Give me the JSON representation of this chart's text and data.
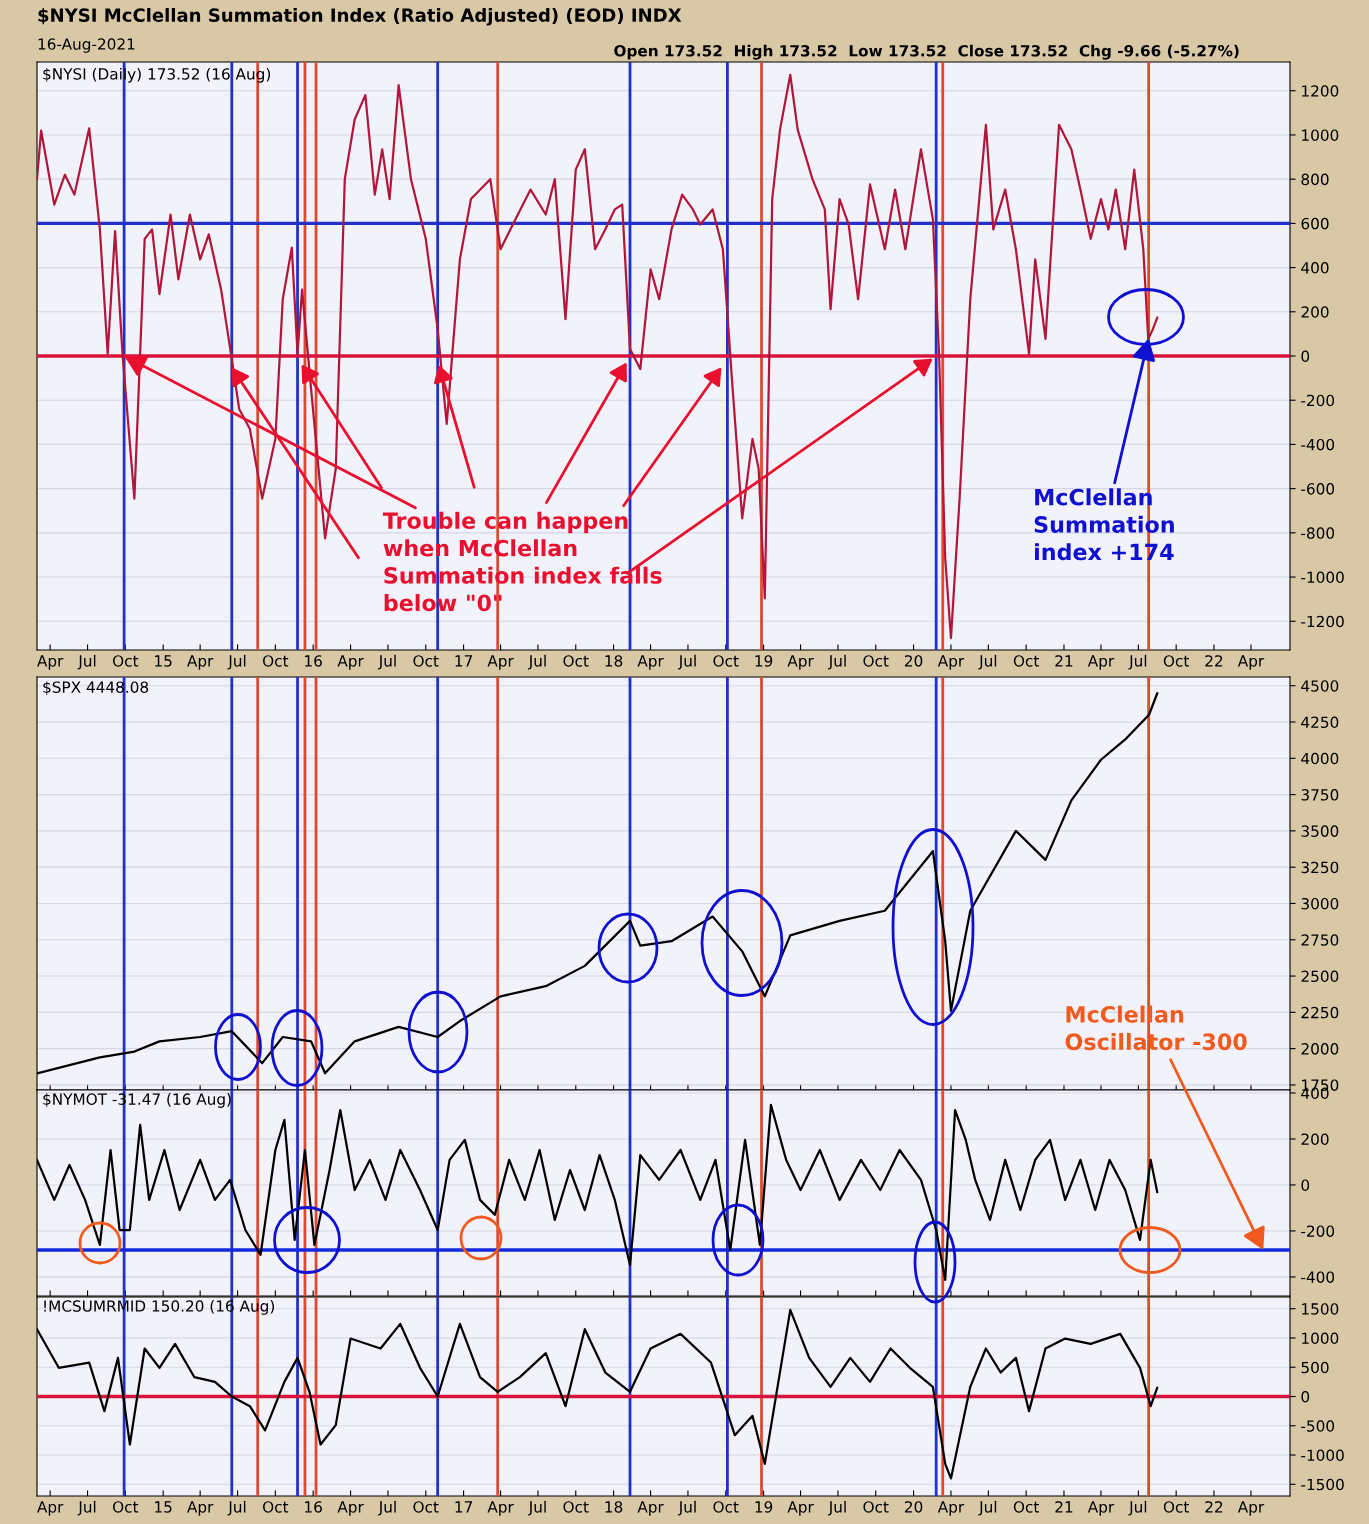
{
  "chart_data": [
    {
      "type": "line",
      "title": "$NYSI McClellan Summation Index (Ratio Adjusted) (EOD) INDX",
      "subtitle": "16-Aug-2021",
      "annotations": [
        "$NYSI (Daily) 173.52 (16 Aug)",
        "Open 173.52  High 173.52  Low 173.52  Close 173.52  Chg -9.66 (-5.27%)",
        {
          "text": "Trouble can happen\nwhen McClellan\nSummation index falls\nbelow \"0\"",
          "x": "2014-09-28",
          "y": 0
        },
        {
          "text": "McClellan\nSummation\nindex +174",
          "x": "2021-07-26",
          "y": 80
        }
      ],
      "x": [
        "2014-02-28",
        "2014-03-10",
        "2014-04-11",
        "2014-05-07",
        "2014-05-30",
        "2014-07-05",
        "2014-07-31",
        "2014-08-19",
        "2014-09-06",
        "2014-09-24",
        "2014-10-23",
        "2014-11-17",
        "2014-12-05",
        "2014-12-23",
        "2015-01-19",
        "2015-02-07",
        "2015-03-07",
        "2015-04-01",
        "2015-04-22",
        "2015-05-22",
        "2015-06-17",
        "2015-07-05",
        "2015-07-31",
        "2015-08-30",
        "2015-10-01",
        "2015-10-19",
        "2015-11-10",
        "2015-11-24",
        "2015-12-05",
        "2015-12-27",
        "2016-01-30",
        "2016-02-25",
        "2016-03-18",
        "2016-04-11",
        "2016-05-07",
        "2016-05-30",
        "2016-06-17",
        "2016-07-05",
        "2016-07-27",
        "2016-08-26",
        "2016-10-01",
        "2016-10-30",
        "2016-11-21",
        "2016-12-23",
        "2017-01-19",
        "2017-03-07",
        "2017-04-01",
        "2017-05-07",
        "2017-06-13",
        "2017-07-20",
        "2017-08-11",
        "2017-09-06",
        "2017-10-01",
        "2017-10-23",
        "2017-11-17",
        "2017-12-12",
        "2018-01-04",
        "2018-01-22",
        "2018-02-10",
        "2018-03-07",
        "2018-04-01",
        "2018-04-22",
        "2018-05-22",
        "2018-06-17",
        "2018-07-13",
        "2018-07-31",
        "2018-08-30",
        "2018-09-24",
        "2018-10-16",
        "2018-11-10",
        "2018-12-05",
        "2018-12-20",
        "2019-01-04",
        "2019-01-22",
        "2019-02-10",
        "2019-03-07",
        "2019-03-25",
        "2019-04-30",
        "2019-05-30",
        "2019-06-13",
        "2019-07-05",
        "2019-07-27",
        "2019-08-19",
        "2019-09-17",
        "2019-10-23",
        "2019-11-17",
        "2019-12-12",
        "2020-01-19",
        "2020-02-17",
        "2020-03-03",
        "2020-03-18",
        "2020-04-01",
        "2020-04-22",
        "2020-05-18",
        "2020-06-25",
        "2020-07-13",
        "2020-08-11",
        "2020-09-06",
        "2020-10-08",
        "2020-10-23",
        "2020-11-17",
        "2020-12-20",
        "2021-01-19",
        "2021-02-10",
        "2021-03-07",
        "2021-04-01",
        "2021-04-19",
        "2021-05-07",
        "2021-05-30",
        "2021-06-21",
        "2021-07-13",
        "2021-07-25",
        "2021-08-05",
        "2021-08-16"
      ],
      "values": [
        800,
        1020,
        685,
        820,
        730,
        1030,
        573,
        10,
        565,
        10,
        -645,
        530,
        573,
        280,
        640,
        347,
        640,
        437,
        550,
        300,
        -14,
        -240,
        -330,
        -645,
        -375,
        257,
        490,
        10,
        300,
        -150,
        -825,
        -510,
        800,
        1070,
        1180,
        730,
        935,
        710,
        1225,
        800,
        530,
        120,
        -307,
        437,
        710,
        800,
        483,
        618,
        753,
        640,
        800,
        167,
        843,
        935,
        483,
        573,
        663,
        685,
        32,
        -59,
        392,
        257,
        573,
        730,
        663,
        595,
        663,
        483,
        -104,
        -735,
        -375,
        -510,
        -1096,
        710,
        1024,
        1272,
        1024,
        800,
        663,
        212,
        710,
        595,
        257,
        776,
        483,
        753,
        483,
        935,
        618,
        10,
        -915,
        -1276,
        -645,
        257,
        1046,
        573,
        753,
        483,
        10,
        437,
        77,
        1046,
        935,
        753,
        530,
        710,
        573,
        753,
        483,
        843,
        483,
        77,
        120,
        173.52
      ],
      "color": "#b0173a",
      "xlim": [
        "2014-02-28",
        "2022-07-05"
      ],
      "ylim": [
        -1330,
        1330
      ],
      "xticks": [
        {
          "value": "2014-04-01",
          "label": "Apr"
        },
        {
          "value": "2014-07-01",
          "label": "Jul"
        },
        {
          "value": "2014-10-01",
          "label": "Oct"
        },
        {
          "value": "2015-01-01",
          "label": "15"
        },
        {
          "value": "2015-04-01",
          "label": "Apr"
        },
        {
          "value": "2015-07-01",
          "label": "Jul"
        },
        {
          "value": "2015-10-01",
          "label": "Oct"
        },
        {
          "value": "2016-01-01",
          "label": "16"
        },
        {
          "value": "2016-04-01",
          "label": "Apr"
        },
        {
          "value": "2016-07-01",
          "label": "Jul"
        },
        {
          "value": "2016-10-01",
          "label": "Oct"
        },
        {
          "value": "2017-01-01",
          "label": "17"
        },
        {
          "value": "2017-04-01",
          "label": "Apr"
        },
        {
          "value": "2017-07-01",
          "label": "Jul"
        },
        {
          "value": "2017-10-01",
          "label": "Oct"
        },
        {
          "value": "2018-01-01",
          "label": "18"
        },
        {
          "value": "2018-04-01",
          "label": "Apr"
        },
        {
          "value": "2018-07-01",
          "label": "Jul"
        },
        {
          "value": "2018-10-01",
          "label": "Oct"
        },
        {
          "value": "2019-01-01",
          "label": "19"
        },
        {
          "value": "2019-04-01",
          "label": "Apr"
        },
        {
          "value": "2019-07-01",
          "label": "Jul"
        },
        {
          "value": "2019-10-01",
          "label": "Oct"
        },
        {
          "value": "2020-01-01",
          "label": "20"
        },
        {
          "value": "2020-04-01",
          "label": "Apr"
        },
        {
          "value": "2020-07-01",
          "label": "Jul"
        },
        {
          "value": "2020-10-01",
          "label": "Oct"
        },
        {
          "value": "2021-01-01",
          "label": "21"
        },
        {
          "value": "2021-04-01",
          "label": "Apr"
        },
        {
          "value": "2021-07-01",
          "label": "Jul"
        },
        {
          "value": "2021-10-01",
          "label": "Oct"
        },
        {
          "value": "2022-01-01",
          "label": "22"
        },
        {
          "value": "2022-04-01",
          "label": "Apr"
        }
      ],
      "yticks": [
        -1200,
        -1000,
        -800,
        -600,
        -400,
        -200,
        0,
        200,
        400,
        600,
        800,
        1000,
        1200
      ],
      "grid": "y",
      "ref_lines": [
        {
          "axis": "y",
          "value": 600,
          "color": "#2030c8"
        },
        {
          "axis": "y",
          "value": 0,
          "color": "#d8143c"
        },
        {
          "axis": "x",
          "value": "2014-09-28",
          "color": "#2030c8"
        },
        {
          "axis": "x",
          "value": "2015-06-17",
          "color": "#2030c8"
        },
        {
          "axis": "x",
          "value": "2015-11-24",
          "color": "#2030c8"
        },
        {
          "axis": "x",
          "value": "2016-10-30",
          "color": "#2030c8"
        },
        {
          "axis": "x",
          "value": "2018-02-10",
          "color": "#2030c8"
        },
        {
          "axis": "x",
          "value": "2018-10-05",
          "color": "#2030c8"
        },
        {
          "axis": "x",
          "value": "2020-02-25",
          "color": "#2030c8"
        },
        {
          "axis": "x",
          "value": "2015-08-19",
          "color": "#e04830"
        },
        {
          "axis": "x",
          "value": "2015-12-12",
          "color": "#e04830"
        },
        {
          "axis": "x",
          "value": "2016-01-08",
          "color": "#e04830"
        },
        {
          "axis": "x",
          "value": "2017-03-25",
          "color": "#e04830"
        },
        {
          "axis": "x",
          "value": "2018-12-27",
          "color": "#e04830"
        },
        {
          "axis": "x",
          "value": "2020-03-12",
          "color": "#e04830"
        },
        {
          "axis": "x",
          "value": "2021-07-26",
          "color": "#e04830"
        }
      ]
    },
    {
      "type": "line",
      "annotations": [
        "$SPX 4448.08"
      ],
      "x": [
        "2014-02-28",
        "2014-07-31",
        "2014-10-23",
        "2014-12-23",
        "2015-04-01",
        "2015-06-17",
        "2015-08-30",
        "2015-10-19",
        "2015-12-27",
        "2016-01-30",
        "2016-04-11",
        "2016-07-27",
        "2016-10-30",
        "2016-12-23",
        "2017-04-01",
        "2017-07-20",
        "2017-10-23",
        "2018-02-10",
        "2018-03-07",
        "2018-05-22",
        "2018-08-30",
        "2018-11-10",
        "2019-01-04",
        "2019-03-07",
        "2019-07-05",
        "2019-10-23",
        "2020-02-17",
        "2020-03-18",
        "2020-04-01",
        "2020-05-18",
        "2020-09-06",
        "2020-11-17",
        "2021-01-19",
        "2021-04-01",
        "2021-05-30",
        "2021-07-27",
        "2021-08-16"
      ],
      "values": [
        1830,
        1940,
        1980,
        2050,
        2080,
        2120,
        1900,
        2080,
        2050,
        1830,
        2050,
        2150,
        2080,
        2190,
        2360,
        2430,
        2570,
        2880,
        2710,
        2740,
        2910,
        2670,
        2360,
        2780,
        2880,
        2950,
        3360,
        2740,
        2260,
        2950,
        3500,
        3300,
        3710,
        3990,
        4130,
        4300,
        4448.08
      ],
      "color": "#000000",
      "xlim": [
        "2014-02-28",
        "2022-07-05"
      ],
      "ylim": [
        1715,
        4560
      ],
      "tick_labels": "y",
      "xticks": [
        {
          "value": "2014-04-01",
          "label": null
        },
        {
          "value": "2014-07-01",
          "label": null
        },
        {
          "value": "2014-10-01",
          "label": null
        },
        {
          "value": "2015-01-01",
          "label": null
        },
        {
          "value": "2015-04-01",
          "label": null
        },
        {
          "value": "2015-07-01",
          "label": null
        },
        {
          "value": "2015-10-01",
          "label": null
        },
        {
          "value": "2016-01-01",
          "label": null
        },
        {
          "value": "2016-04-01",
          "label": null
        },
        {
          "value": "2016-07-01",
          "label": null
        },
        {
          "value": "2016-10-01",
          "label": null
        },
        {
          "value": "2017-01-01",
          "label": null
        },
        {
          "value": "2017-04-01",
          "label": null
        },
        {
          "value": "2017-07-01",
          "label": null
        },
        {
          "value": "2017-10-01",
          "label": null
        },
        {
          "value": "2018-01-01",
          "label": null
        },
        {
          "value": "2018-04-01",
          "label": null
        },
        {
          "value": "2018-07-01",
          "label": null
        },
        {
          "value": "2018-10-01",
          "label": null
        },
        {
          "value": "2019-01-01",
          "label": null
        },
        {
          "value": "2019-04-01",
          "label": null
        },
        {
          "value": "2019-07-01",
          "label": null
        },
        {
          "value": "2019-10-01",
          "label": null
        },
        {
          "value": "2020-01-01",
          "label": null
        },
        {
          "value": "2020-04-01",
          "label": null
        },
        {
          "value": "2020-07-01",
          "label": null
        },
        {
          "value": "2020-10-01",
          "label": null
        },
        {
          "value": "2021-01-01",
          "label": null
        },
        {
          "value": "2021-04-01",
          "label": null
        },
        {
          "value": "2021-07-01",
          "label": null
        },
        {
          "value": "2021-10-01",
          "label": null
        },
        {
          "value": "2022-01-01",
          "label": null
        },
        {
          "value": "2022-04-01",
          "label": null
        }
      ],
      "yticks": [
        1750,
        2000,
        2250,
        2500,
        2750,
        3000,
        3250,
        3500,
        3750,
        4000,
        4250,
        4500
      ],
      "grid": "y",
      "ref_lines": [
        {
          "axis": "x",
          "value": "2014-09-28",
          "color": "#2030c8"
        },
        {
          "axis": "x",
          "value": "2015-06-17",
          "color": "#2030c8"
        },
        {
          "axis": "x",
          "value": "2015-11-24",
          "color": "#2030c8"
        },
        {
          "axis": "x",
          "value": "2016-10-30",
          "color": "#2030c8"
        },
        {
          "axis": "x",
          "value": "2018-02-10",
          "color": "#2030c8"
        },
        {
          "axis": "x",
          "value": "2018-10-05",
          "color": "#2030c8"
        },
        {
          "axis": "x",
          "value": "2020-02-25",
          "color": "#2030c8"
        },
        {
          "axis": "x",
          "value": "2015-08-19",
          "color": "#e04830"
        },
        {
          "axis": "x",
          "value": "2015-12-12",
          "color": "#e04830"
        },
        {
          "axis": "x",
          "value": "2016-01-08",
          "color": "#e04830"
        },
        {
          "axis": "x",
          "value": "2017-03-25",
          "color": "#e04830"
        },
        {
          "axis": "x",
          "value": "2018-12-27",
          "color": "#e04830"
        },
        {
          "axis": "x",
          "value": "2020-03-12",
          "color": "#e04830"
        },
        {
          "axis": "x",
          "value": "2021-07-26",
          "color": "#e04830"
        }
      ]
    },
    {
      "type": "line",
      "annotations": [
        "$NYMOT -31.47 (16 Aug)",
        {
          "text": "McClellan\nOscillator -300",
          "x": "2022-05-01",
          "y": -283
        }
      ],
      "x": [
        "2014-02-28",
        "2014-04-11",
        "2014-05-18",
        "2014-06-25",
        "2014-07-31",
        "2014-08-26",
        "2014-09-17",
        "2014-10-12",
        "2014-11-06",
        "2014-11-28",
        "2015-01-04",
        "2015-02-10",
        "2015-04-01",
        "2015-05-07",
        "2015-06-13",
        "2015-07-20",
        "2015-08-26",
        "2015-10-01",
        "2015-10-23",
        "2015-11-17",
        "2015-12-12",
        "2016-01-04",
        "2016-02-10",
        "2016-03-07",
        "2016-04-11",
        "2016-05-18",
        "2016-06-25",
        "2016-07-31",
        "2016-09-17",
        "2016-10-30",
        "2016-11-28",
        "2017-01-04",
        "2017-02-10",
        "2017-03-18",
        "2017-04-22",
        "2017-05-30",
        "2017-07-05",
        "2017-08-11",
        "2017-09-17",
        "2017-10-23",
        "2017-11-28",
        "2018-01-04",
        "2018-02-10",
        "2018-03-07",
        "2018-04-22",
        "2018-06-13",
        "2018-07-31",
        "2018-09-06",
        "2018-10-12",
        "2018-11-17",
        "2018-12-23",
        "2019-01-19",
        "2019-02-25",
        "2019-04-01",
        "2019-05-18",
        "2019-07-05",
        "2019-08-26",
        "2019-10-12",
        "2019-11-28",
        "2020-01-19",
        "2020-02-25",
        "2020-03-18",
        "2020-04-11",
        "2020-05-07",
        "2020-05-30",
        "2020-07-05",
        "2020-08-11",
        "2020-09-17",
        "2020-10-23",
        "2020-11-28",
        "2021-01-04",
        "2021-02-10",
        "2021-03-18",
        "2021-04-22",
        "2021-05-30",
        "2021-07-05",
        "2021-07-31",
        "2021-08-16"
      ],
      "values": [
        109,
        -65,
        87,
        -65,
        -261,
        152,
        -196,
        -196,
        261,
        -65,
        152,
        -109,
        109,
        -65,
        22,
        -196,
        -304,
        152,
        283,
        -239,
        152,
        -261,
        65,
        326,
        -22,
        109,
        -65,
        152,
        -22,
        -196,
        109,
        196,
        -65,
        -130,
        109,
        -65,
        152,
        -152,
        65,
        -109,
        130,
        -65,
        -348,
        130,
        22,
        152,
        -65,
        109,
        -283,
        196,
        -261,
        348,
        109,
        -22,
        152,
        -65,
        109,
        -22,
        152,
        22,
        -196,
        -413,
        326,
        196,
        22,
        -152,
        109,
        -109,
        109,
        196,
        -65,
        109,
        -109,
        109,
        -22,
        -239,
        109,
        -31.47
      ],
      "color": "#000000",
      "xlim": [
        "2014-02-28",
        "2022-07-05"
      ],
      "ylim": [
        -483,
        413
      ],
      "tick_labels": "y",
      "xticks": [
        {
          "value": "2014-04-01",
          "label": null
        },
        {
          "value": "2014-07-01",
          "label": null
        },
        {
          "value": "2014-10-01",
          "label": null
        },
        {
          "value": "2015-01-01",
          "label": null
        },
        {
          "value": "2015-04-01",
          "label": null
        },
        {
          "value": "2015-07-01",
          "label": null
        },
        {
          "value": "2015-10-01",
          "label": null
        },
        {
          "value": "2016-01-01",
          "label": null
        },
        {
          "value": "2016-04-01",
          "label": null
        },
        {
          "value": "2016-07-01",
          "label": null
        },
        {
          "value": "2016-10-01",
          "label": null
        },
        {
          "value": "2017-01-01",
          "label": null
        },
        {
          "value": "2017-04-01",
          "label": null
        },
        {
          "value": "2017-07-01",
          "label": null
        },
        {
          "value": "2017-10-01",
          "label": null
        },
        {
          "value": "2018-01-01",
          "label": null
        },
        {
          "value": "2018-04-01",
          "label": null
        },
        {
          "value": "2018-07-01",
          "label": null
        },
        {
          "value": "2018-10-01",
          "label": null
        },
        {
          "value": "2019-01-01",
          "label": null
        },
        {
          "value": "2019-04-01",
          "label": null
        },
        {
          "value": "2019-07-01",
          "label": null
        },
        {
          "value": "2019-10-01",
          "label": null
        },
        {
          "value": "2020-01-01",
          "label": null
        },
        {
          "value": "2020-04-01",
          "label": null
        },
        {
          "value": "2020-07-01",
          "label": null
        },
        {
          "value": "2020-10-01",
          "label": null
        },
        {
          "value": "2021-01-01",
          "label": null
        },
        {
          "value": "2021-04-01",
          "label": null
        },
        {
          "value": "2021-07-01",
          "label": null
        },
        {
          "value": "2021-10-01",
          "label": null
        },
        {
          "value": "2022-01-01",
          "label": null
        },
        {
          "value": "2022-04-01",
          "label": null
        }
      ],
      "yticks": [
        -400,
        -200,
        0,
        200,
        400
      ],
      "grid": "y",
      "ref_lines": [
        {
          "axis": "y",
          "value": -283,
          "color": "#1428e0"
        },
        {
          "axis": "x",
          "value": "2014-09-28",
          "color": "#2030c8"
        },
        {
          "axis": "x",
          "value": "2015-06-17",
          "color": "#2030c8"
        },
        {
          "axis": "x",
          "value": "2015-11-24",
          "color": "#2030c8"
        },
        {
          "axis": "x",
          "value": "2016-10-30",
          "color": "#2030c8"
        },
        {
          "axis": "x",
          "value": "2018-02-10",
          "color": "#2030c8"
        },
        {
          "axis": "x",
          "value": "2018-10-05",
          "color": "#2030c8"
        },
        {
          "axis": "x",
          "value": "2020-02-25",
          "color": "#2030c8"
        },
        {
          "axis": "x",
          "value": "2015-08-19",
          "color": "#e04830"
        },
        {
          "axis": "x",
          "value": "2015-12-12",
          "color": "#e04830"
        },
        {
          "axis": "x",
          "value": "2016-01-08",
          "color": "#e04830"
        },
        {
          "axis": "x",
          "value": "2017-03-25",
          "color": "#e04830"
        },
        {
          "axis": "x",
          "value": "2018-12-27",
          "color": "#e04830"
        },
        {
          "axis": "x",
          "value": "2020-03-12",
          "color": "#e04830"
        },
        {
          "axis": "x",
          "value": "2021-07-26",
          "color": "#e04830"
        }
      ]
    },
    {
      "type": "line",
      "annotations": [
        "!MCSUMRMID 150.20 (16 Aug)"
      ],
      "x": [
        "2014-02-28",
        "2014-04-22",
        "2014-07-05",
        "2014-08-11",
        "2014-09-13",
        "2014-10-12",
        "2014-11-17",
        "2014-12-23",
        "2015-01-30",
        "2015-03-18",
        "2015-05-07",
        "2015-06-17",
        "2015-07-31",
        "2015-09-06",
        "2015-10-23",
        "2015-11-24",
        "2015-12-23",
        "2016-01-19",
        "2016-02-25",
        "2016-04-01",
        "2016-06-13",
        "2016-07-31",
        "2016-09-17",
        "2016-10-30",
        "2016-12-23",
        "2017-02-10",
        "2017-03-25",
        "2017-05-18",
        "2017-07-20",
        "2017-09-06",
        "2017-10-23",
        "2017-12-12",
        "2018-02-10",
        "2018-04-01",
        "2018-06-13",
        "2018-08-26",
        "2018-10-23",
        "2018-12-05",
        "2019-01-04",
        "2019-03-07",
        "2019-04-22",
        "2019-06-13",
        "2019-07-31",
        "2019-09-17",
        "2019-11-06",
        "2019-12-23",
        "2020-02-17",
        "2020-03-18",
        "2020-04-01",
        "2020-05-18",
        "2020-06-25",
        "2020-07-31",
        "2020-09-06",
        "2020-10-08",
        "2020-11-17",
        "2021-01-04",
        "2021-03-07",
        "2021-05-18",
        "2021-07-05",
        "2021-07-31",
        "2021-08-16"
      ],
      "values": [
        1150,
        490,
        580,
        -250,
        660,
        -820,
        820,
        490,
        900,
        330,
        250,
        0,
        -165,
        -580,
        250,
        660,
        80,
        -820,
        -490,
        990,
        820,
        1240,
        490,
        0,
        1240,
        330,
        80,
        330,
        740,
        -165,
        1150,
        410,
        80,
        820,
        1070,
        580,
        -660,
        -330,
        -1150,
        1480,
        660,
        165,
        660,
        250,
        820,
        490,
        165,
        -1150,
        -1400,
        165,
        820,
        410,
        660,
        -250,
        820,
        990,
        900,
        1070,
        490,
        -165,
        150.2
      ],
      "color": "#000000",
      "xlim": [
        "2014-02-28",
        "2022-07-05"
      ],
      "ylim": [
        -1700,
        1700
      ],
      "xticks": [
        {
          "value": "2014-04-01",
          "label": "Apr"
        },
        {
          "value": "2014-07-01",
          "label": "Jul"
        },
        {
          "value": "2014-10-01",
          "label": "Oct"
        },
        {
          "value": "2015-01-01",
          "label": "15"
        },
        {
          "value": "2015-04-01",
          "label": "Apr"
        },
        {
          "value": "2015-07-01",
          "label": "Jul"
        },
        {
          "value": "2015-10-01",
          "label": "Oct"
        },
        {
          "value": "2016-01-01",
          "label": "16"
        },
        {
          "value": "2016-04-01",
          "label": "Apr"
        },
        {
          "value": "2016-07-01",
          "label": "Jul"
        },
        {
          "value": "2016-10-01",
          "label": "Oct"
        },
        {
          "value": "2017-01-01",
          "label": "17"
        },
        {
          "value": "2017-04-01",
          "label": "Apr"
        },
        {
          "value": "2017-07-01",
          "label": "Jul"
        },
        {
          "value": "2017-10-01",
          "label": "Oct"
        },
        {
          "value": "2018-01-01",
          "label": "18"
        },
        {
          "value": "2018-04-01",
          "label": "Apr"
        },
        {
          "value": "2018-07-01",
          "label": "Jul"
        },
        {
          "value": "2018-10-01",
          "label": "Oct"
        },
        {
          "value": "2019-01-01",
          "label": "19"
        },
        {
          "value": "2019-04-01",
          "label": "Apr"
        },
        {
          "value": "2019-07-01",
          "label": "Jul"
        },
        {
          "value": "2019-10-01",
          "label": "Oct"
        },
        {
          "value": "2020-01-01",
          "label": "20"
        },
        {
          "value": "2020-04-01",
          "label": "Apr"
        },
        {
          "value": "2020-07-01",
          "label": "Jul"
        },
        {
          "value": "2020-10-01",
          "label": "Oct"
        },
        {
          "value": "2021-01-01",
          "label": "21"
        },
        {
          "value": "2021-04-01",
          "label": "Apr"
        },
        {
          "value": "2021-07-01",
          "label": "Jul"
        },
        {
          "value": "2021-10-01",
          "label": "Oct"
        },
        {
          "value": "2022-01-01",
          "label": "22"
        },
        {
          "value": "2022-04-01",
          "label": "Apr"
        }
      ],
      "yticks": [
        -1500,
        -1000,
        -500,
        0,
        500,
        1000,
        1500
      ],
      "grid": "y",
      "ref_lines": [
        {
          "axis": "y",
          "value": 0,
          "color": "#d8143c"
        },
        {
          "axis": "x",
          "value": "2014-09-28",
          "color": "#2030c8"
        },
        {
          "axis": "x",
          "value": "2015-06-17",
          "color": "#2030c8"
        },
        {
          "axis": "x",
          "value": "2015-11-24",
          "color": "#2030c8"
        },
        {
          "axis": "x",
          "value": "2016-10-30",
          "color": "#2030c8"
        },
        {
          "axis": "x",
          "value": "2018-02-10",
          "color": "#2030c8"
        },
        {
          "axis": "x",
          "value": "2018-10-05",
          "color": "#2030c8"
        },
        {
          "axis": "x",
          "value": "2020-02-25",
          "color": "#2030c8"
        },
        {
          "axis": "x",
          "value": "2015-08-19",
          "color": "#e04830"
        },
        {
          "axis": "x",
          "value": "2015-12-12",
          "color": "#e04830"
        },
        {
          "axis": "x",
          "value": "2016-01-08",
          "color": "#e04830"
        },
        {
          "axis": "x",
          "value": "2017-03-25",
          "color": "#e04830"
        },
        {
          "axis": "x",
          "value": "2018-12-27",
          "color": "#e04830"
        },
        {
          "axis": "x",
          "value": "2020-03-12",
          "color": "#e04830"
        },
        {
          "axis": "x",
          "value": "2021-07-26",
          "color": "#e04830"
        }
      ]
    }
  ]
}
